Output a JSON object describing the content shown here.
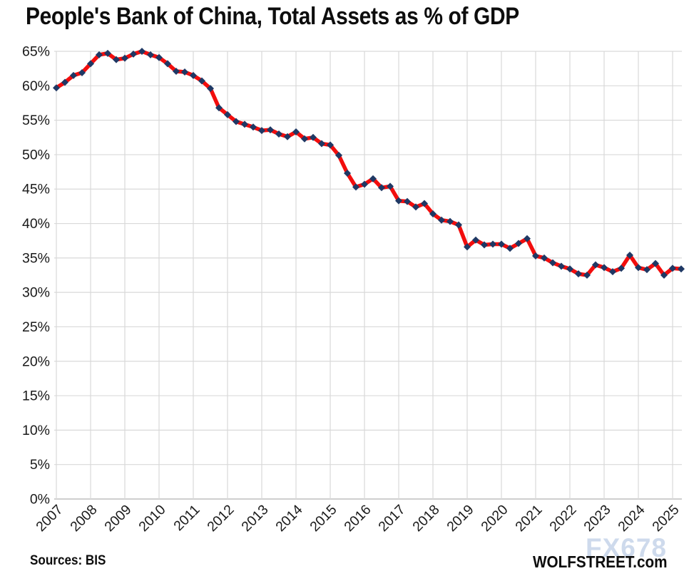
{
  "title": "People's Bank of China, Total Assets as % of GDP",
  "footer": {
    "sources": "Sources: BIS",
    "site": "WOLFSTREET.com",
    "watermark": "FX678"
  },
  "colors": {
    "line": "#f20d0d",
    "marker": "#1f3864",
    "grid": "#d9d9d9",
    "axis_bottom": "#bfbfbf",
    "tick_text": "#1a1a1a",
    "watermark": "#ccd9ec"
  },
  "chart_data": {
    "type": "line",
    "title": "People's Bank of China, Total Assets as % of GDP",
    "xlabel": "",
    "ylabel": "",
    "frequency": "quarterly",
    "start_period": "2007-Q1",
    "end_period": "2025-Q2",
    "x_year_labels": [
      "2007",
      "2008",
      "2009",
      "2010",
      "2011",
      "2012",
      "2013",
      "2014",
      "2015",
      "2016",
      "2017",
      "2018",
      "2019",
      "2020",
      "2021",
      "2022",
      "2023",
      "2024",
      "2025"
    ],
    "y_tick_labels": [
      "0%",
      "5%",
      "10%",
      "15%",
      "20%",
      "25%",
      "30%",
      "35%",
      "40%",
      "45%",
      "50%",
      "55%",
      "60%",
      "65%"
    ],
    "ylim": [
      0,
      65
    ],
    "grid": true,
    "legend_position": "none",
    "series": [
      {
        "name": "PBoC total assets as % of GDP",
        "values": [
          59.7,
          60.5,
          61.5,
          61.9,
          63.2,
          64.5,
          64.7,
          63.8,
          64.0,
          64.6,
          65.0,
          64.5,
          64.1,
          63.2,
          62.1,
          62.0,
          61.5,
          60.7,
          59.6,
          56.8,
          55.8,
          54.8,
          54.4,
          54.0,
          53.5,
          53.6,
          53.0,
          52.6,
          53.3,
          52.3,
          52.5,
          51.6,
          51.4,
          49.9,
          47.3,
          45.3,
          45.7,
          46.5,
          45.2,
          45.4,
          43.3,
          43.2,
          42.4,
          42.9,
          41.4,
          40.5,
          40.3,
          39.8,
          36.6,
          37.6,
          36.9,
          37.0,
          37.0,
          36.4,
          37.1,
          37.8,
          35.3,
          35.0,
          34.3,
          33.8,
          33.4,
          32.7,
          32.5,
          34.0,
          33.6,
          33.0,
          33.5,
          35.4,
          33.6,
          33.3,
          34.2,
          32.5,
          33.5,
          33.4
        ]
      }
    ]
  }
}
